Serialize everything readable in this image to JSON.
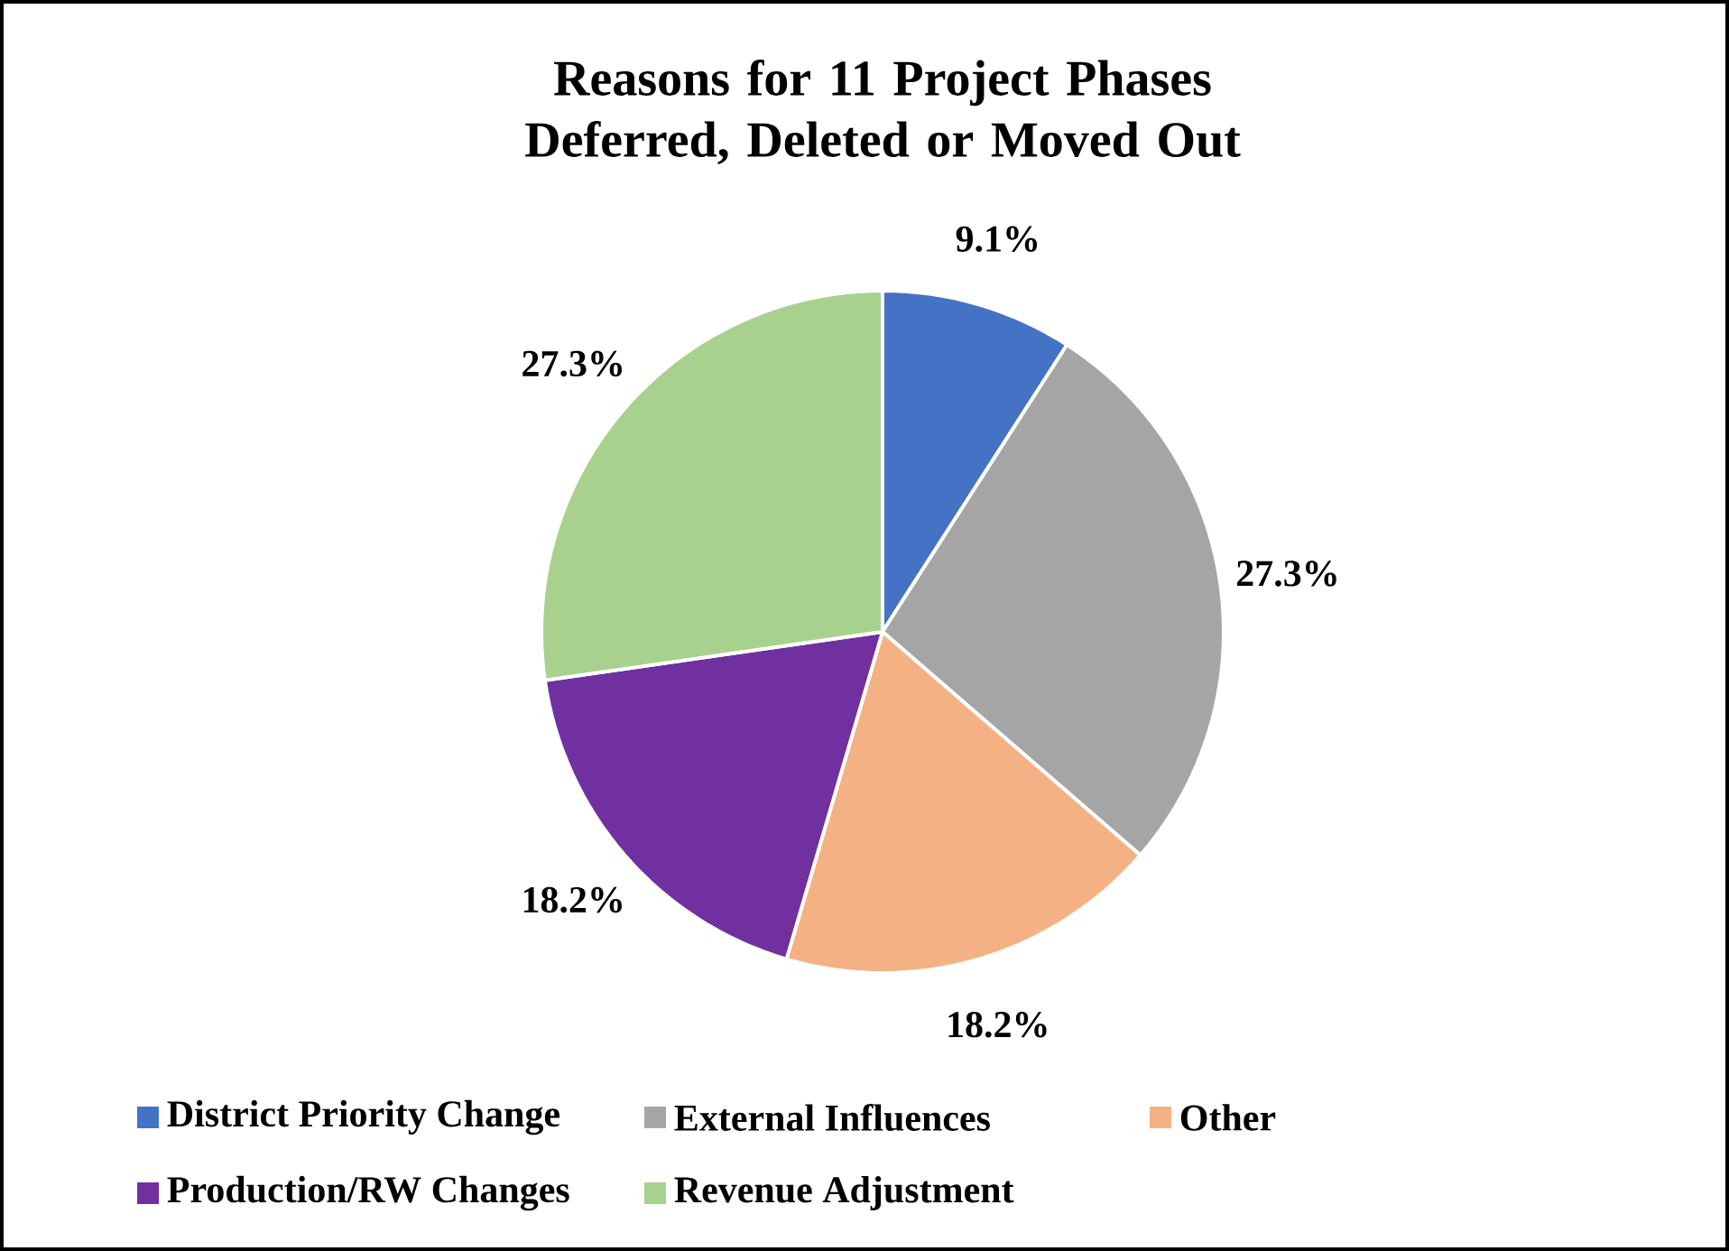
{
  "chart_data": {
    "type": "pie",
    "title": "Reasons for 11 Project Phases Deferred, Deleted or Moved Out",
    "categories": [
      "District Priority Change",
      "External Influences",
      "Other",
      "Production/RW Changes",
      "Revenue Adjustment"
    ],
    "values": [
      9.1,
      27.3,
      18.2,
      18.2,
      27.3
    ],
    "colors": [
      "#4472c4",
      "#a5a5a5",
      "#f4b183",
      "#7030a0",
      "#a9d18e"
    ],
    "value_labels": [
      "9.1%",
      "27.3%",
      "18.2%",
      "18.2%",
      "27.3%"
    ],
    "legend": "bottom"
  }
}
